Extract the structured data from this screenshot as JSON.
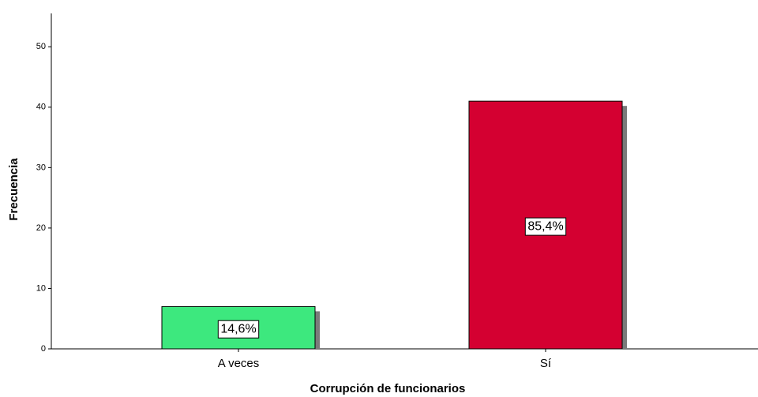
{
  "chart_data": {
    "type": "bar",
    "x_label": "Corrupción de funcionarios",
    "y_label": "Frecuencia",
    "categories": [
      "A veces",
      "Sí"
    ],
    "values": [
      7,
      41
    ],
    "percents": [
      14.6,
      85.4
    ],
    "percent_labels": [
      "14,6%",
      "85,4%"
    ],
    "colors": [
      "#3de87e",
      "#d40031"
    ],
    "ylim": [
      0,
      55
    ],
    "yticks": [
      0,
      10,
      20,
      30,
      40,
      50
    ],
    "grid": false
  }
}
